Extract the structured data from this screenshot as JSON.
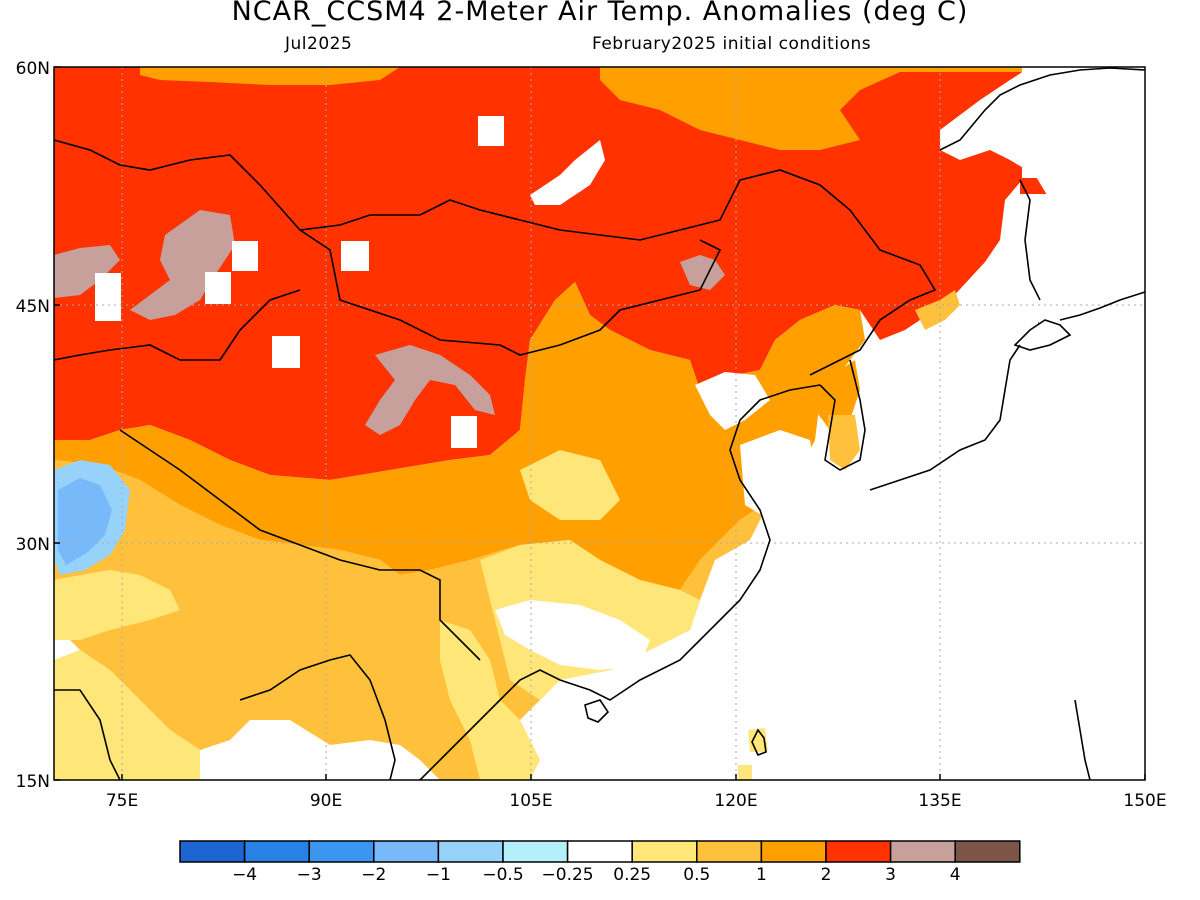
{
  "header": {
    "title": "NCAR_CCSM4 2-Meter Air Temp. Anomalies (deg C)",
    "valid_month": "Jul2025",
    "initial_conditions": "February2025 initial conditions"
  },
  "map": {
    "lat_range": [
      15,
      60
    ],
    "lon_range": [
      70,
      150
    ],
    "lat_labels": [
      "60N",
      "45N",
      "30N",
      "15N"
    ],
    "lon_labels": [
      "75E",
      "90E",
      "105E",
      "120E",
      "135E",
      "150E"
    ],
    "gridlines": "dotted"
  },
  "colorbar": {
    "labels": [
      "−4",
      "−3",
      "−2",
      "−1",
      "−0.5",
      "−0.25",
      "0.25",
      "0.5",
      "1",
      "2",
      "3",
      "4"
    ],
    "colors": [
      "#1e64d2",
      "#2882e6",
      "#3c96f0",
      "#78b9fa",
      "#96d2fa",
      "#b4f0fa",
      "#ffffff",
      "#ffe678",
      "#ffc03c",
      "#ffa000",
      "#ff3200",
      "#c8a09b",
      "#7d5546"
    ]
  }
}
